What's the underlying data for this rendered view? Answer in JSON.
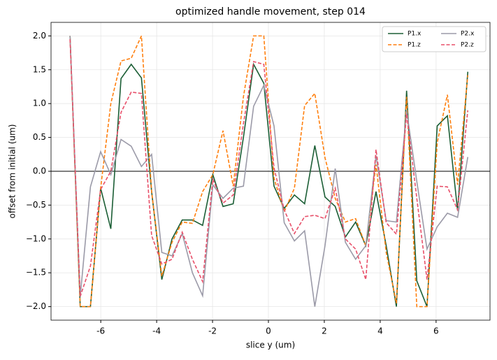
{
  "chart_data": {
    "type": "line",
    "title": "optimized handle movement, step 014",
    "x_label": "slice y (um)",
    "y_label": "offset from initial (um)",
    "x": [
      -7.1,
      -6.735,
      -6.37,
      -6.005,
      -5.64,
      -5.275,
      -4.91,
      -4.545,
      -4.18,
      -3.815,
      -3.45,
      -3.085,
      -2.72,
      -2.355,
      -1.99,
      -1.625,
      -1.26,
      -0.895,
      -0.53,
      -0.165,
      0.2,
      0.565,
      0.93,
      1.295,
      1.66,
      2.025,
      2.39,
      2.755,
      3.12,
      3.485,
      3.85,
      4.215,
      4.58,
      4.945,
      5.31,
      5.675,
      6.04,
      6.405,
      6.77,
      7.135
    ],
    "series": [
      {
        "name": "P1.x",
        "color": "#1b5e35",
        "dash": false,
        "values": [
          2.0,
          -2.0,
          -2.0,
          -0.25,
          -0.85,
          1.37,
          1.58,
          1.38,
          -0.3,
          -1.6,
          -1.0,
          -0.72,
          -0.72,
          -0.8,
          -0.05,
          -0.52,
          -0.48,
          0.5,
          1.58,
          1.3,
          -0.22,
          -0.55,
          -0.35,
          -0.48,
          0.38,
          -0.38,
          -0.52,
          -0.97,
          -0.75,
          -1.1,
          -0.3,
          -1.1,
          -2.0,
          1.19,
          -1.62,
          -2.0,
          0.67,
          0.82,
          -0.58,
          1.47
        ]
      },
      {
        "name": "P1.z",
        "color": "#ff7f0e",
        "dash": true,
        "values": [
          2.0,
          -2.0,
          -2.0,
          -0.25,
          1.0,
          1.63,
          1.67,
          2.0,
          -0.3,
          -1.55,
          -1.05,
          -0.75,
          -0.77,
          -0.3,
          -0.05,
          0.6,
          -0.22,
          1.1,
          2.0,
          2.0,
          -0.1,
          -0.6,
          -0.25,
          0.97,
          1.15,
          0.2,
          -0.4,
          -0.75,
          -0.7,
          -1.1,
          0.1,
          -1.2,
          -1.95,
          1.1,
          -2.0,
          -2.0,
          0.42,
          1.13,
          -0.2,
          1.42
        ]
      },
      {
        "name": "P2.x",
        "color": "#9b9aa8",
        "dash": false,
        "values": [
          2.0,
          -1.85,
          -0.23,
          0.29,
          -0.05,
          0.47,
          0.37,
          0.07,
          0.25,
          -1.2,
          -1.25,
          -0.92,
          -1.5,
          -1.84,
          -0.2,
          -0.4,
          -0.25,
          -0.22,
          0.96,
          1.27,
          0.67,
          -0.76,
          -1.03,
          -0.88,
          -2.0,
          -1.1,
          0.04,
          -1.05,
          -1.3,
          -1.1,
          0.23,
          -0.73,
          -0.75,
          0.9,
          -0.15,
          -1.15,
          -0.82,
          -0.62,
          -0.68,
          0.21
        ]
      },
      {
        "name": "P2.z",
        "color": "#e8506a",
        "dash": true,
        "values": [
          1.95,
          -1.85,
          -1.4,
          -0.27,
          0.0,
          0.87,
          1.17,
          1.15,
          -0.95,
          -1.37,
          -1.3,
          -0.9,
          -1.3,
          -1.63,
          -0.12,
          -0.47,
          -0.35,
          0.7,
          1.62,
          1.58,
          0.05,
          -0.57,
          -0.92,
          -0.67,
          -0.65,
          -0.7,
          -0.25,
          -1.0,
          -1.15,
          -1.6,
          0.32,
          -0.76,
          -0.93,
          0.85,
          -0.4,
          -1.6,
          -0.22,
          -0.23,
          -0.57,
          0.9
        ]
      }
    ],
    "xlim": [
      -7.78,
      7.93
    ],
    "xticks": [
      -6,
      -4,
      -2,
      0,
      2,
      4,
      6
    ],
    "ylim": [
      -2.2,
      2.2
    ],
    "yticks": [
      {
        "value": -2,
        "label": "−2.0"
      },
      {
        "value": -1.5,
        "label": "−1.5"
      },
      {
        "value": -1,
        "label": "−1.0"
      },
      {
        "value": -0.5,
        "label": "−0.5"
      },
      {
        "value": 0,
        "label": "0.0"
      },
      {
        "value": 0.5,
        "label": "0.5"
      },
      {
        "value": 1,
        "label": "1.0"
      },
      {
        "value": 1.5,
        "label": "1.5"
      },
      {
        "value": 2,
        "label": "2.0"
      }
    ],
    "grid": true,
    "zero_line": true,
    "legend": "upper right"
  }
}
